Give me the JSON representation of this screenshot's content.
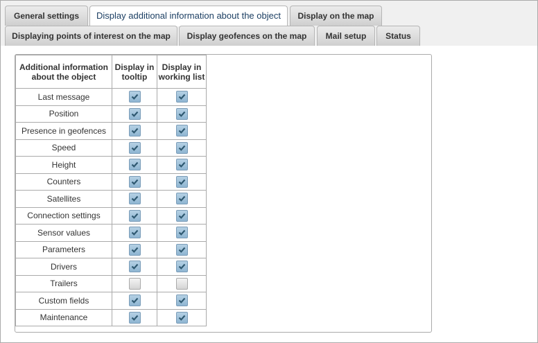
{
  "tabs_row1": [
    {
      "label": "General settings"
    },
    {
      "label": "Display additional information about the object",
      "active": true
    },
    {
      "label": "Display on the map"
    }
  ],
  "tabs_row2": [
    {
      "label": "Displaying points of interest on the map"
    },
    {
      "label": "Display geofences on the map"
    },
    {
      "label": "Mail setup"
    },
    {
      "label": "Status"
    }
  ],
  "table": {
    "headers": [
      "Additional information about the object",
      "Display in tooltip",
      "Display in working list"
    ],
    "rows": [
      {
        "label": "Last message",
        "tooltip": true,
        "list": true
      },
      {
        "label": "Position",
        "tooltip": true,
        "list": true
      },
      {
        "label": "Presence in geofences",
        "tooltip": true,
        "list": true
      },
      {
        "label": "Speed",
        "tooltip": true,
        "list": true
      },
      {
        "label": "Height",
        "tooltip": true,
        "list": true
      },
      {
        "label": "Counters",
        "tooltip": true,
        "list": true
      },
      {
        "label": "Satellites",
        "tooltip": true,
        "list": true
      },
      {
        "label": "Connection settings",
        "tooltip": true,
        "list": true
      },
      {
        "label": "Sensor values",
        "tooltip": true,
        "list": true
      },
      {
        "label": "Parameters",
        "tooltip": true,
        "list": true
      },
      {
        "label": "Drivers",
        "tooltip": true,
        "list": true
      },
      {
        "label": "Trailers",
        "tooltip": false,
        "list": false
      },
      {
        "label": "Custom fields",
        "tooltip": true,
        "list": true
      },
      {
        "label": "Maintenance",
        "tooltip": true,
        "list": true
      }
    ]
  },
  "colors": {
    "checked": "#9bbfd8",
    "check_mark": "#2e5870",
    "active_tab_text": "#1c3f63"
  }
}
